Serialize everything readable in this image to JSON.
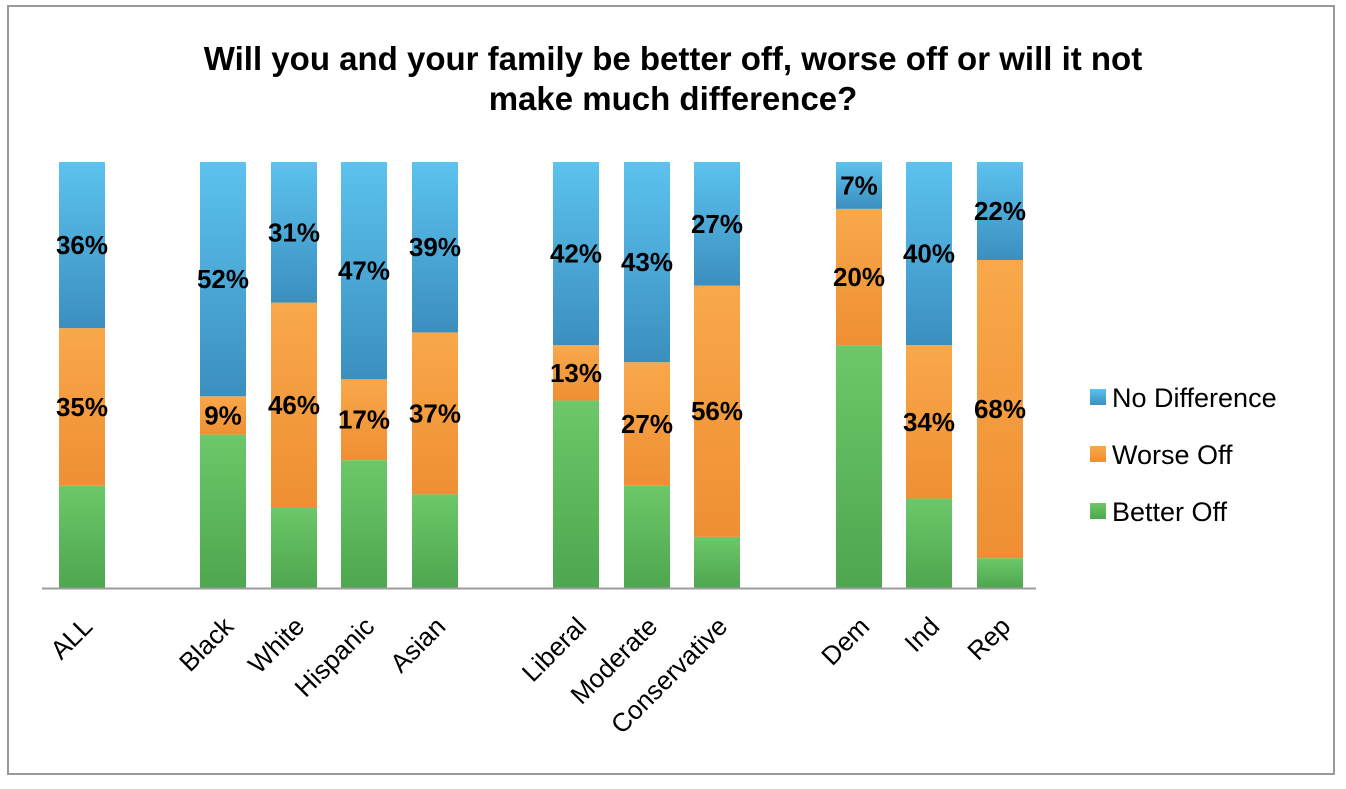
{
  "chart_data": {
    "type": "bar",
    "stacked": true,
    "normalized_percent": true,
    "title": "Will you and your family be better off, worse off or will it not make much difference?",
    "title_lines": [
      "Will you and your family be better off, worse off or will it not",
      "make much difference?"
    ],
    "xlabel": "",
    "ylabel": "",
    "ylim": [
      0,
      100
    ],
    "grid": false,
    "legend_position": "right",
    "categories": [
      "ALL",
      "Black",
      "White",
      "Hispanic",
      "Asian",
      "Liberal",
      "Moderate",
      "Conservative",
      "Dem",
      "Ind",
      "Rep"
    ],
    "groups": [
      [
        "ALL"
      ],
      [
        "Black",
        "White",
        "Hispanic",
        "Asian"
      ],
      [
        "Liberal",
        "Moderate",
        "Conservative"
      ],
      [
        "Dem",
        "Ind",
        "Rep"
      ]
    ],
    "series": [
      {
        "name": "Better Off",
        "color": "#5cb85c",
        "color_light": "#6cc86a",
        "color_dark": "#4ea64e",
        "values": [
          24,
          36,
          19,
          30,
          22,
          44,
          24,
          12,
          57,
          21,
          7
        ],
        "show_labels": false
      },
      {
        "name": "Worse Off",
        "color": "#f59a3a",
        "color_light": "#f8a84a",
        "color_dark": "#ef8f33",
        "values": [
          37,
          9,
          48,
          19,
          38,
          13,
          29,
          59,
          32,
          36,
          70
        ],
        "labels": [
          "35%",
          "9%",
          "46%",
          "17%",
          "37%",
          "13%",
          "27%",
          "56%",
          "20%",
          "34%",
          "68%"
        ],
        "show_labels": true
      },
      {
        "name": "No Difference",
        "color": "#4aa8da",
        "color_light": "#5cc2ee",
        "color_dark": "#3b8fbf",
        "values": [
          39,
          55,
          33,
          51,
          40,
          43,
          47,
          29,
          11,
          43,
          23
        ],
        "labels": [
          "36%",
          "52%",
          "31%",
          "47%",
          "39%",
          "42%",
          "43%",
          "27%",
          "7%",
          "40%",
          "22%"
        ],
        "show_labels": true
      }
    ],
    "legend": [
      "No Difference",
      "Worse Off",
      "Better Off"
    ]
  }
}
